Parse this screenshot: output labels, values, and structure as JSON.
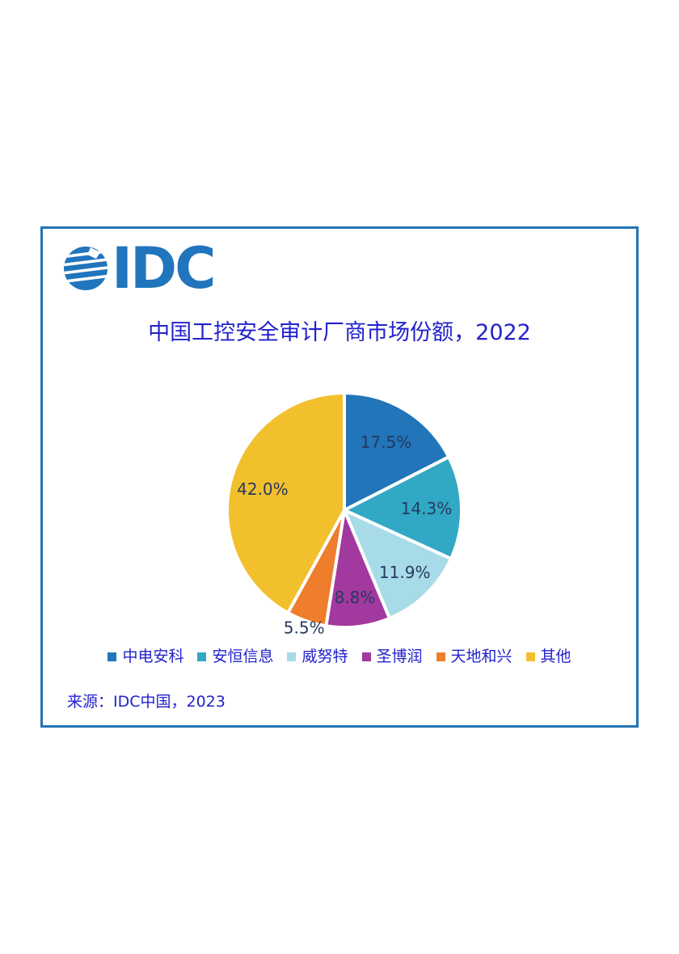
{
  "logo": {
    "text": "IDC"
  },
  "title": "中国工控安全审计厂商市场份额，2022",
  "chart_data": {
    "type": "pie",
    "title": "中国工控安全审计厂商市场份额，2022",
    "categories": [
      "中电安科",
      "安恒信息",
      "威努特",
      "圣博润",
      "天地和兴",
      "其他"
    ],
    "values": [
      17.5,
      14.3,
      11.9,
      8.8,
      5.5,
      42.0
    ],
    "labels": [
      "17.5%",
      "14.3%",
      "11.9%",
      "8.8%",
      "5.5%",
      "42.0%"
    ],
    "colors": [
      "#2175B8",
      "#31A8C4",
      "#A7DBE8",
      "#A2399E",
      "#EE7D2C",
      "#F2C02C"
    ],
    "start_angle_deg": -90,
    "clockwise": true,
    "slice_gap_stroke": "#FFFFFF",
    "label_color": "#26395F",
    "label_font_size": 20,
    "label_radius_factors": [
      0.68,
      0.7,
      0.74,
      0.75,
      1.06,
      0.72
    ],
    "legend_position": "bottom",
    "source": "来源：IDC中国，2023"
  },
  "source": {
    "text": "来源：IDC中国，2023"
  },
  "theme": {
    "frame_border": "#2473B5",
    "text_blue": "#2222CC",
    "logo_blue": "#2175BC",
    "background": "#FFFFFF"
  }
}
